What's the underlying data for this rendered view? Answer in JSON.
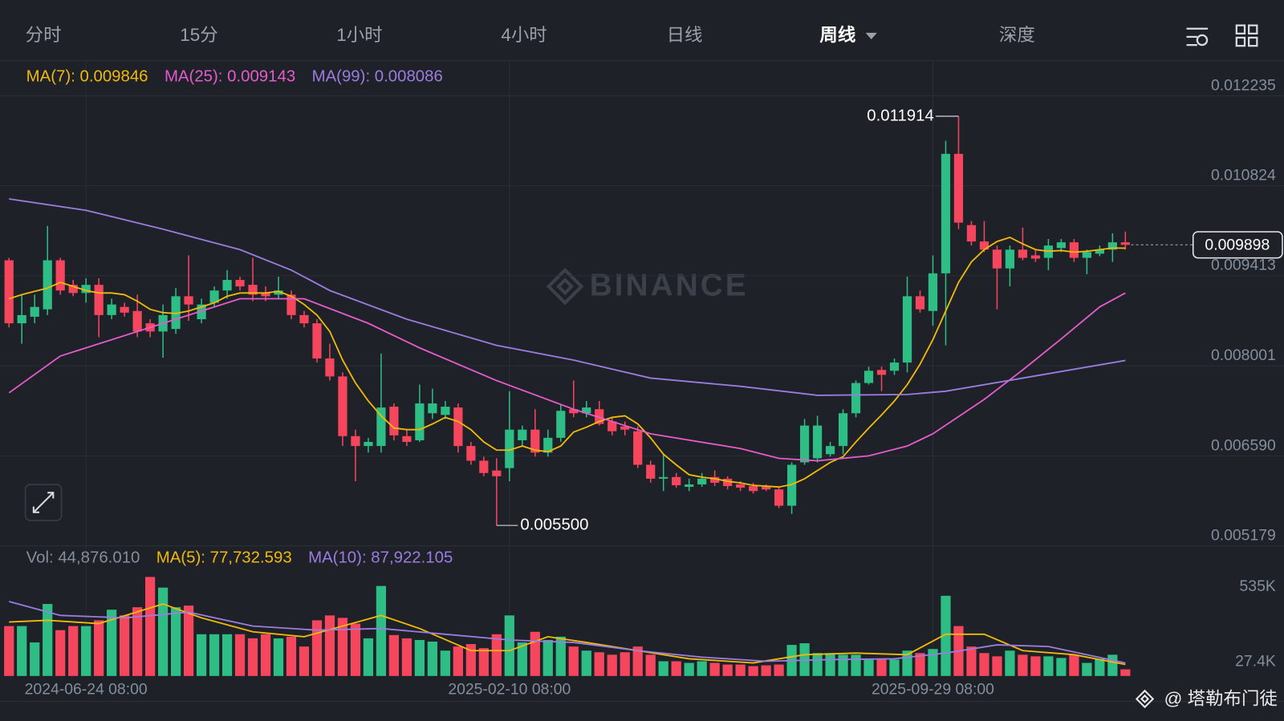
{
  "tabs": [
    "分时",
    "15分",
    "1小时",
    "4小时",
    "日线",
    "周线",
    "深度"
  ],
  "active_tab": 5,
  "footer": "@ 塔勒布门徒",
  "chart_data": [
    {
      "type": "candlestick",
      "watermark": "BINANCE",
      "up_color": "#2ebd85",
      "down_color": "#f6465d",
      "grid": true,
      "ylim": [
        0.005179,
        0.012774
      ],
      "yticks": [
        0.012235,
        0.010824,
        0.009413,
        0.008001,
        {
          "value": 0.00659,
          "label": "0.006590"
        },
        0.005179
      ],
      "high_label": "0.011914",
      "low_label": "0.005500",
      "categories": [
        null,
        null,
        null,
        null,
        null,
        null,
        "2024-06-24 08:00",
        null,
        null,
        null,
        null,
        null,
        null,
        null,
        null,
        null,
        null,
        null,
        null,
        null,
        null,
        null,
        null,
        null,
        null,
        null,
        null,
        null,
        null,
        null,
        null,
        null,
        null,
        null,
        null,
        null,
        null,
        null,
        null,
        "2025-02-10 08:00",
        null,
        null,
        null,
        null,
        null,
        null,
        null,
        null,
        null,
        null,
        null,
        null,
        null,
        null,
        null,
        null,
        null,
        null,
        null,
        null,
        null,
        null,
        null,
        null,
        null,
        null,
        null,
        null,
        null,
        null,
        null,
        null,
        "2025-09-29 08:00",
        null,
        null,
        null,
        null,
        null,
        null,
        null,
        null,
        null,
        null,
        null,
        null,
        null,
        null,
        null
      ],
      "open": [
        0.009656,
        0.008668,
        0.008771,
        0.008887,
        0.009656,
        0.009271,
        0.009143,
        0.009271,
        0.008797,
        0.008925,
        0.008861,
        0.008668,
        0.00854,
        0.008579,
        0.009092,
        0.008732,
        0.00899,
        0.009182,
        0.009348,
        0.009271,
        0.009143,
        0.009117,
        0.009117,
        0.008797,
        0.008668,
        0.008117,
        0.007835,
        0.006899,
        0.006744,
        0.006744,
        0.007361,
        0.006899,
        0.006834,
        0.007258,
        0.007232,
        0.007348,
        0.006744,
        0.006514,
        0.00636,
        0.006398,
        0.006834,
        0.007001,
        0.006641,
        0.006873,
        0.007321,
        0.007258,
        0.007321,
        0.007129,
        0.007052,
        0.006976,
        0.00645,
        0.006232,
        0.006258,
        0.006104,
        0.006142,
        0.006258,
        0.006232,
        0.006142,
        0.006116,
        0.006104,
        0.006064,
        0.005808,
        0.006488,
        0.006552,
        0.006616,
        0.006744,
        0.007258,
        0.007732,
        0.007937,
        0.007924,
        0.008053,
        0.009092,
        0.008861,
        0.009451,
        0.011324,
        0.010207,
        0.009951,
        0.009823,
        0.009528,
        0.009823,
        0.009733,
        0.009694,
        0.009848,
        0.009938,
        0.009694,
        0.009759,
        0.009823,
        0.009938
      ],
      "high": [
        0.009694,
        0.009117,
        0.009117,
        0.010194,
        0.009694,
        0.009348,
        0.009374,
        0.009374,
        0.009054,
        0.00899,
        0.009117,
        0.008732,
        0.008963,
        0.00922,
        0.009733,
        0.009054,
        0.009246,
        0.009502,
        0.009399,
        0.009694,
        0.009246,
        0.009399,
        0.009182,
        0.008861,
        0.008732,
        0.008348,
        0.007899,
        0.007001,
        0.006873,
        0.008194,
        0.007412,
        0.007001,
        0.007707,
        0.007643,
        0.00745,
        0.007412,
        0.006809,
        0.006578,
        0.006552,
        0.007604,
        0.007065,
        0.007321,
        0.007001,
        0.007386,
        0.007771,
        0.00745,
        0.00745,
        0.007194,
        0.007129,
        0.007052,
        0.006514,
        0.006616,
        0.006321,
        0.006232,
        0.006321,
        0.00636,
        0.00627,
        0.006193,
        0.006168,
        0.006142,
        0.006104,
        0.006488,
        0.007168,
        0.007219,
        0.006809,
        0.007321,
        0.007771,
        0.007988,
        0.007988,
        0.008117,
        0.009399,
        0.009182,
        0.009733,
        0.011529,
        0.011914,
        0.010271,
        0.010271,
        0.009887,
        0.009887,
        0.010169,
        0.009823,
        0.00999,
        0.00999,
        0.00999,
        0.009823,
        0.009887,
        0.010079,
        0.010105
      ],
      "low": [
        0.008604,
        0.008348,
        0.008668,
        0.008797,
        0.009117,
        0.009092,
        0.00899,
        0.00845,
        0.008732,
        0.008771,
        0.00845,
        0.00845,
        0.008129,
        0.008502,
        0.008707,
        0.008668,
        0.008925,
        0.009054,
        0.009182,
        0.009015,
        0.009015,
        0.009054,
        0.008732,
        0.008604,
        0.008053,
        0.007771,
        0.006744,
        0.006193,
        0.006641,
        0.006641,
        0.006834,
        0.006744,
        0.006809,
        0.007168,
        0.007168,
        0.006641,
        0.00645,
        0.00627,
        0.0055,
        0.006193,
        0.006744,
        0.006578,
        0.006578,
        0.006809,
        0.007194,
        0.007194,
        0.007065,
        0.006911,
        0.006911,
        0.006398,
        0.006168,
        0.006038,
        0.006091,
        0.006038,
        0.006104,
        0.006116,
        0.006064,
        0.006038,
        0.006,
        0.006038,
        0.00577,
        0.00568,
        0.00645,
        0.006488,
        0.006578,
        0.006616,
        0.007194,
        0.007707,
        0.007604,
        0.00786,
        0.007899,
        0.008835,
        0.00863,
        0.008322,
        0.010143,
        0.009887,
        0.009784,
        0.008887,
        0.009246,
        0.009656,
        0.00963,
        0.009502,
        0.009784,
        0.00963,
        0.009438,
        0.00972,
        0.00963,
        0.009823
      ],
      "close": [
        0.008668,
        0.008797,
        0.008925,
        0.009656,
        0.009182,
        0.009143,
        0.009271,
        0.008797,
        0.008963,
        0.008835,
        0.00854,
        0.00854,
        0.008797,
        0.009092,
        0.008963,
        0.008963,
        0.009182,
        0.009348,
        0.009246,
        0.009117,
        0.009092,
        0.009182,
        0.008797,
        0.008668,
        0.008117,
        0.007835,
        0.006899,
        0.006744,
        0.006809,
        0.007348,
        0.006911,
        0.006809,
        0.007412,
        0.007412,
        0.007361,
        0.006744,
        0.006514,
        0.006321,
        0.00627,
        0.007001,
        0.007001,
        0.006641,
        0.006873,
        0.007296,
        0.007258,
        0.007348,
        0.007091,
        0.006976,
        0.007001,
        0.00645,
        0.006232,
        0.006258,
        0.006129,
        0.006142,
        0.006232,
        0.006168,
        0.006116,
        0.006091,
        0.006038,
        0.006064,
        0.005808,
        0.00645,
        0.007065,
        0.007065,
        0.006744,
        0.007258,
        0.007732,
        0.007924,
        0.00786,
        0.008053,
        0.009092,
        0.008887,
        0.009451,
        0.011324,
        0.010246,
        0.009951,
        0.009823,
        0.009528,
        0.009823,
        0.009694,
        0.009682,
        0.009887,
        0.009938,
        0.009694,
        0.009784,
        0.009823,
        0.009938,
        0.009898
      ],
      "series": [
        {
          "name": "MA(7): 0.009846",
          "color": "#f0b90b",
          "values": [
            0.009053,
            0.009117,
            0.009169,
            0.00922,
            0.00931,
            0.009246,
            0.009182,
            0.009143,
            0.009143,
            0.009117,
            0.009015,
            0.008887,
            0.008835,
            0.008822,
            0.008861,
            0.008925,
            0.00899,
            0.009092,
            0.009143,
            0.009143,
            0.009143,
            0.009169,
            0.009092,
            0.008963,
            0.008797,
            0.00854,
            0.008091,
            0.007732,
            0.00745,
            0.007218,
            0.007026,
            0.007001,
            0.007001,
            0.00709,
            0.007193,
            0.007129,
            0.007001,
            0.006808,
            0.00668,
            0.00668,
            0.006744,
            0.00668,
            0.006654,
            0.006744,
            0.006962,
            0.007039,
            0.007129,
            0.007193,
            0.007218,
            0.00709,
            0.006872,
            0.006616,
            0.006449,
            0.006295,
            0.006256,
            0.006231,
            0.006192,
            0.006166,
            0.006128,
            0.006115,
            0.006102,
            0.006141,
            0.006231,
            0.006359,
            0.006487,
            0.006577,
            0.006808,
            0.007026,
            0.007231,
            0.00745,
            0.007706,
            0.008027,
            0.008412,
            0.008861,
            0.00931,
            0.00963,
            0.009823,
            0.009951,
            0.010015,
            0.009913,
            0.009823,
            0.009797,
            0.00981,
            0.009784,
            0.009797,
            0.009823,
            0.009848,
            0.009846
          ]
        },
        {
          "name": "MA(25): 0.009143",
          "color": "#e45ccb",
          "x": [
            0,
            4,
            6,
            12,
            18,
            23,
            28,
            32,
            38,
            44,
            50,
            57,
            60,
            63,
            67,
            70,
            72,
            76,
            79,
            82,
            85,
            87
          ],
          "values": [
            0.007578,
            0.008155,
            0.008283,
            0.008668,
            0.009053,
            0.009053,
            0.008668,
            0.008283,
            0.00777,
            0.007321,
            0.006936,
            0.006705,
            0.006551,
            0.006513,
            0.00659,
            0.006744,
            0.006936,
            0.007475,
            0.007937,
            0.008424,
            0.008925,
            0.009143
          ]
        },
        {
          "name": "MA(99): 0.008086",
          "color": "#9c7ce0",
          "x": [
            0,
            6,
            12,
            18,
            22,
            25,
            31,
            38,
            44,
            50,
            57,
            63,
            70,
            73,
            79,
            87
          ],
          "values": [
            0.010618,
            0.010439,
            0.010144,
            0.009823,
            0.009502,
            0.009182,
            0.008732,
            0.008322,
            0.008091,
            0.007809,
            0.00768,
            0.007539,
            0.007552,
            0.007603,
            0.007809,
            0.008086
          ]
        }
      ]
    },
    {
      "type": "bar",
      "title": "Vol: 44,876.010",
      "up_color": "#2ebd85",
      "down_color": "#f6465d",
      "ylim": [
        0,
        722700
      ],
      "yticks": [
        {
          "value": 535000,
          "label": "535K"
        },
        {
          "value": 27400,
          "label": "27.4K"
        }
      ],
      "values": [
        336500,
        336500,
        226200,
        485500,
        309000,
        336500,
        336500,
        375200,
        446900,
        408300,
        463400,
        667600,
        595800,
        463400,
        474500,
        281400,
        281400,
        281400,
        281400,
        253800,
        281400,
        253800,
        264800,
        198600,
        375200,
        408300,
        391700,
        353100,
        253800,
        606900,
        275900,
        253800,
        242700,
        231700,
        171000,
        198600,
        215200,
        187600,
        281400,
        408300,
        226200,
        297900,
        242700,
        264800,
        198600,
        171000,
        160000,
        143400,
        160000,
        198600,
        143400,
        99300,
        99300,
        88300,
        99300,
        88300,
        77200,
        77200,
        66200,
        71700,
        77200,
        209600,
        220700,
        154500,
        154500,
        143400,
        143400,
        115900,
        110300,
        110300,
        171000,
        154500,
        182100,
        540700,
        336500,
        198600,
        154500,
        132400,
        171000,
        143400,
        132400,
        132400,
        121400,
        143400,
        88300,
        115900,
        143400,
        44876.01
      ],
      "series": [
        {
          "name": "MA(5): 77,732.593",
          "color": "#f0b90b",
          "x": [
            0,
            3,
            7,
            12,
            15,
            19,
            23,
            26,
            29,
            32,
            36,
            39,
            42,
            45,
            49,
            53,
            58,
            62,
            66,
            70,
            73,
            76,
            79,
            83,
            87
          ],
          "values": [
            364100,
            375200,
            353100,
            485500,
            391700,
            297900,
            264800,
            336500,
            408300,
            320000,
            171000,
            171000,
            264800,
            226200,
            171000,
            115900,
            88300,
            143400,
            154500,
            143400,
            281400,
            281400,
            171000,
            143400,
            77732.593
          ]
        },
        {
          "name": "MA(10): 87,922.105",
          "color": "#9c7ce0",
          "x": [
            0,
            4,
            9,
            14,
            19,
            24,
            29,
            34,
            39,
            44,
            49,
            54,
            59,
            64,
            69,
            73,
            77,
            81,
            84,
            87
          ],
          "values": [
            502000,
            408300,
            391700,
            430300,
            336500,
            309000,
            320000,
            281400,
            242700,
            226200,
            171000,
            126900,
            99300,
            110300,
            115900,
            154500,
            209600,
            198600,
            143400,
            87922.105
          ]
        }
      ]
    }
  ]
}
